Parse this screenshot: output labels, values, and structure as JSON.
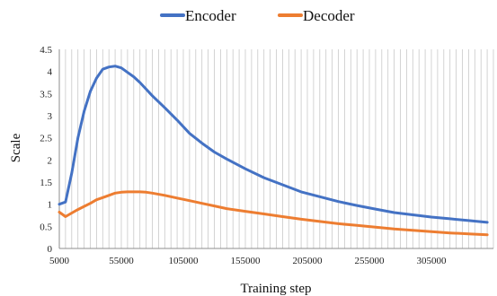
{
  "chart_data": {
    "type": "line",
    "xlabel": "Training step",
    "ylabel": "Scale",
    "xlim": [
      5000,
      355000
    ],
    "ylim": [
      0,
      4.5
    ],
    "x_ticks": [
      5000,
      55000,
      105000,
      155000,
      205000,
      255000,
      305000
    ],
    "x_tick_labels": [
      "5000",
      "55000",
      "105000",
      "155000",
      "205000",
      "255000",
      "305000"
    ],
    "y_ticks": [
      0,
      0.5,
      1,
      1.5,
      2,
      2.5,
      3,
      3.5,
      4,
      4.5
    ],
    "y_tick_labels": [
      "0",
      "0.5",
      "1",
      "1.5",
      "2",
      "2.5",
      "3",
      "3.5",
      "4",
      "4.5"
    ],
    "grid": {
      "vertical": true,
      "horizontal": false
    },
    "legend": {
      "position": "top-center"
    },
    "x": [
      5000,
      10000,
      15000,
      20000,
      25000,
      30000,
      35000,
      40000,
      45000,
      50000,
      55000,
      60000,
      65000,
      70000,
      75000,
      80000,
      90000,
      100000,
      110000,
      120000,
      130000,
      140000,
      155000,
      170000,
      185000,
      200000,
      215000,
      230000,
      245000,
      260000,
      275000,
      290000,
      305000,
      320000,
      335000,
      350000
    ],
    "series": [
      {
        "name": "Encoder",
        "color": "#4472C4",
        "values": [
          1.0,
          1.05,
          1.7,
          2.5,
          3.1,
          3.55,
          3.85,
          4.05,
          4.1,
          4.12,
          4.08,
          3.98,
          3.88,
          3.75,
          3.6,
          3.45,
          3.18,
          2.9,
          2.6,
          2.38,
          2.18,
          2.02,
          1.8,
          1.6,
          1.44,
          1.28,
          1.17,
          1.06,
          0.97,
          0.89,
          0.81,
          0.76,
          0.71,
          0.67,
          0.63,
          0.59
        ]
      },
      {
        "name": "Decoder",
        "color": "#ED7D31",
        "values": [
          0.82,
          0.72,
          0.8,
          0.88,
          0.95,
          1.02,
          1.1,
          1.15,
          1.2,
          1.25,
          1.27,
          1.28,
          1.28,
          1.28,
          1.27,
          1.25,
          1.2,
          1.14,
          1.08,
          1.02,
          0.96,
          0.9,
          0.84,
          0.78,
          0.72,
          0.66,
          0.61,
          0.56,
          0.52,
          0.48,
          0.44,
          0.41,
          0.38,
          0.35,
          0.33,
          0.31
        ]
      }
    ]
  }
}
